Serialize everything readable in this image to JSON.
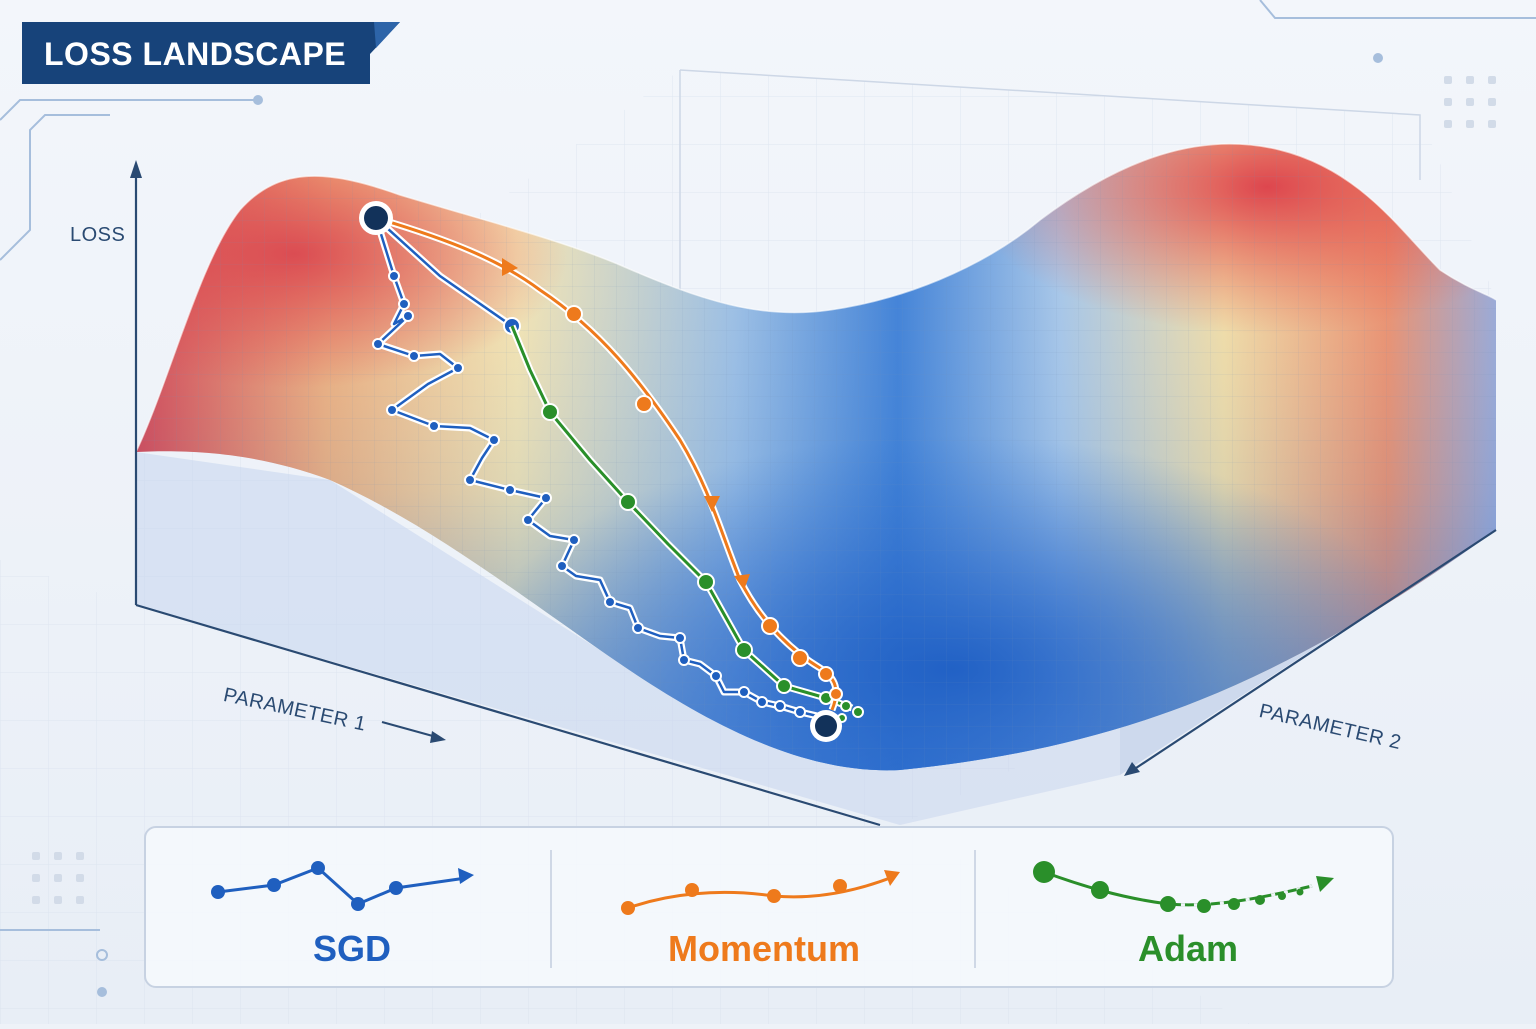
{
  "title": "LOSS LANDSCAPE",
  "axes": {
    "z_label": "LOSS",
    "x_label": "PARAMETER 1",
    "y_label": "PARAMETER 2"
  },
  "legend": [
    {
      "name": "SGD",
      "color": "#1f5fbf"
    },
    {
      "name": "Momentum",
      "color": "#ee7a1c"
    },
    {
      "name": "Adam",
      "color": "#2a8f2a"
    }
  ],
  "colors": {
    "surface_high": "#d8444c",
    "surface_mid": "#f7dc9c",
    "surface_low": "#2f6fcf",
    "badge": "#17437a",
    "start_point": "#12325a"
  }
}
